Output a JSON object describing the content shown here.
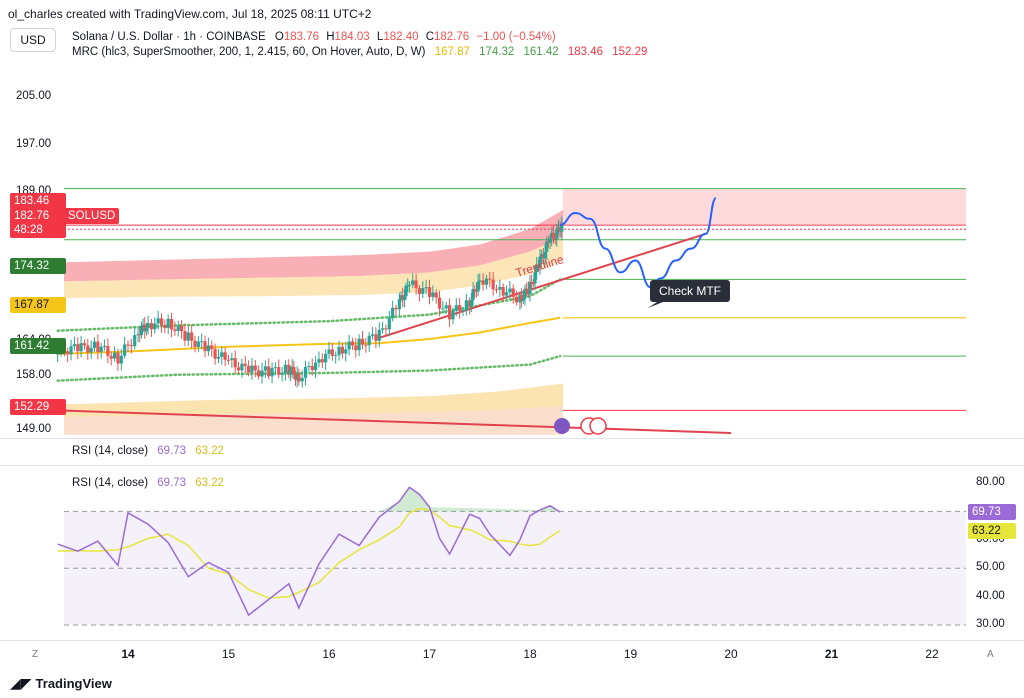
{
  "header": {
    "attribution": "ol_charles created with TradingView.com, Jul 18, 2025 08:11 UTC+2",
    "currency": "USD"
  },
  "legend": {
    "symbol": "Solana / U.S. Dollar · 1h · COINBASE",
    "o_label": "O",
    "o_value": "183.76",
    "h_label": "H",
    "h_value": "184.03",
    "l_label": "L",
    "l_value": "182.40",
    "c_label": "C",
    "c_value": "182.76",
    "change": "−1.00 (−0.54%)",
    "mrc_label": "MRC (hlc3, SuperSmoother, 200, 1, 2.415, 60, On Hover, Auto, D, W)",
    "mrc_values": [
      "167.87",
      "174.32",
      "161.42",
      "183.46",
      "152.29"
    ]
  },
  "colors": {
    "up": "#26a69a",
    "down": "#ef5350",
    "mean": "#f5c518",
    "green_band": "#4caf50",
    "red_band": "#f23645",
    "rsi": "#9c6ad6",
    "rsi_ma": "#e6e63a",
    "blue_path": "#2962ff"
  },
  "price_axis": {
    "ticks": [
      "205.00",
      "197.00",
      "189.00",
      "176.00",
      "170.00",
      "164.00",
      "158.00",
      "149.00"
    ],
    "tags": [
      {
        "label": "183.46",
        "color": "#f23645"
      },
      {
        "label": "182.76",
        "color": "#f23645"
      },
      {
        "label": "48:28",
        "color": "#f23645"
      },
      {
        "label": "174.32",
        "color": "#2e7d32"
      },
      {
        "label": "167.87",
        "color": "#f5c518",
        "text_color": "#131722"
      },
      {
        "label": "161.42",
        "color": "#2e7d32"
      },
      {
        "label": "152.29",
        "color": "#f23645"
      }
    ],
    "symbol_tag": "SOLUSD"
  },
  "annotations": {
    "trendline_label": "Trendline",
    "callout": "Check MTF"
  },
  "rsi": {
    "legend_label": "RSI (14, close)",
    "value": "69.73",
    "ma_value": "63.22",
    "ticks": [
      "80.00",
      "60.00",
      "50.00",
      "40.00",
      "30.00"
    ],
    "tag_value": "69.73",
    "tag_ma": "63.22"
  },
  "time_axis": {
    "ticks": [
      "14",
      "15",
      "16",
      "17",
      "18",
      "19",
      "20",
      "21",
      "22"
    ],
    "bold": [
      "14",
      "21"
    ],
    "left_corner": "Z",
    "right_corner": "A"
  },
  "footer": {
    "brand": "TradingView"
  },
  "chart_data": {
    "type": "line",
    "title": "Solana / U.S. Dollar · 1h · COINBASE",
    "xlabel": "",
    "ylabel": "USD",
    "x": [
      "14",
      "15",
      "16",
      "17",
      "18",
      "19",
      "20",
      "21",
      "22"
    ],
    "ylim": [
      147,
      215
    ],
    "series": [
      {
        "name": "SOLUSD close (approx.)",
        "x": [
          13.3,
          13.5,
          13.7,
          13.9,
          14.1,
          14.2,
          14.4,
          14.6,
          14.8,
          15.0,
          15.2,
          15.4,
          15.6,
          15.7,
          15.9,
          16.1,
          16.3,
          16.5,
          16.7,
          16.8,
          17.0,
          17.2,
          17.4,
          17.5,
          17.7,
          17.9,
          18.0,
          18.1,
          18.2,
          18.3
        ],
        "values": [
          162.3,
          162.8,
          163.0,
          161.0,
          165.5,
          166.8,
          167.0,
          164.5,
          162.5,
          160.5,
          159.0,
          158.8,
          159.2,
          157.8,
          161.0,
          162.5,
          163.5,
          165.0,
          170.5,
          173.5,
          172.0,
          168.5,
          170.5,
          174.5,
          172.8,
          171.0,
          173.0,
          177.5,
          181.0,
          182.76
        ]
      },
      {
        "name": "Projection",
        "x": [
          18.3,
          18.45,
          18.6,
          18.75,
          18.9,
          19.05,
          19.2,
          19.3,
          19.45,
          19.6,
          19.75,
          19.85
        ],
        "values": [
          183.5,
          185.5,
          184.5,
          179.5,
          175.5,
          177.5,
          173.0,
          174.5,
          177.5,
          179.5,
          182.0,
          188.0
        ]
      },
      {
        "name": "MRC mean",
        "x": [
          13.3,
          14.0,
          15.0,
          16.0,
          16.5,
          17.0,
          17.5,
          18.0,
          18.3
        ],
        "values": [
          161.8,
          162.2,
          163.0,
          163.5,
          163.6,
          164.3,
          165.4,
          167.0,
          167.87
        ]
      },
      {
        "name": "Upper inner band (dotted)",
        "x": [
          13.3,
          14.5,
          16.0,
          17.0,
          18.0,
          18.3
        ],
        "values": [
          165.7,
          166.6,
          167.3,
          168.4,
          171.5,
          174.32
        ]
      },
      {
        "name": "Lower inner band (dotted)",
        "x": [
          13.3,
          14.5,
          16.0,
          17.0,
          18.0,
          18.3
        ],
        "values": [
          157.3,
          158.3,
          158.6,
          159.0,
          160.0,
          161.42
        ]
      },
      {
        "name": "Trendline",
        "x": [
          16.5,
          19.75
        ],
        "values": [
          164.5,
          182.0
        ]
      },
      {
        "name": "Lower trend line",
        "x": [
          13.3,
          20.0
        ],
        "values": [
          152.3,
          148.5
        ]
      }
    ],
    "levels": [
      {
        "name": "Upper outer band",
        "value": 183.46
      },
      {
        "name": "Last price",
        "value": 182.76
      },
      {
        "name": "Upper inner",
        "value": 174.32
      },
      {
        "name": "Mean",
        "value": 167.87
      },
      {
        "name": "Lower inner",
        "value": 161.42
      },
      {
        "name": "Lower outer",
        "value": 152.29
      }
    ],
    "rsi_series": {
      "ylim": [
        27,
        85
      ],
      "x": [
        13.3,
        13.5,
        13.7,
        13.9,
        14.0,
        14.2,
        14.4,
        14.6,
        14.8,
        15.0,
        15.2,
        15.4,
        15.6,
        15.7,
        15.9,
        16.1,
        16.3,
        16.5,
        16.7,
        16.8,
        16.9,
        17.0,
        17.1,
        17.2,
        17.4,
        17.5,
        17.6,
        17.8,
        17.9,
        18.0,
        18.1,
        18.2,
        18.3
      ],
      "rsi": [
        58.5,
        56.0,
        59.5,
        51.0,
        69.5,
        65.5,
        59.0,
        47.0,
        52.0,
        48.5,
        33.5,
        39.0,
        44.5,
        36.0,
        51.5,
        62.0,
        58.0,
        68.0,
        73.5,
        78.5,
        76.0,
        71.5,
        60.5,
        55.0,
        69.0,
        67.5,
        62.0,
        54.5,
        60.0,
        68.5,
        70.5,
        72.0,
        69.73
      ],
      "ma": [
        56.0,
        56.2,
        56.0,
        56.5,
        57.5,
        60.5,
        62.0,
        58.0,
        50.0,
        48.0,
        42.5,
        39.5,
        40.0,
        41.5,
        45.0,
        52.0,
        56.5,
        60.0,
        64.5,
        69.5,
        71.0,
        70.5,
        68.0,
        65.0,
        63.5,
        62.0,
        60.0,
        59.5,
        58.5,
        58.0,
        58.5,
        61.0,
        63.22
      ],
      "levels": [
        70,
        50,
        30
      ]
    }
  }
}
